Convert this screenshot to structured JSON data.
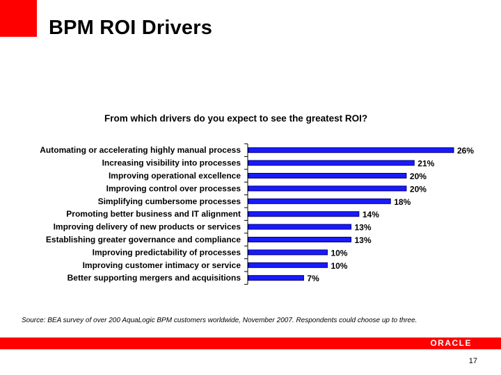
{
  "slide": {
    "title": "BPM ROI Drivers",
    "source": "Source: BEA survey of over 200 AquaLogic BPM customers worldwide, November 2007. Respondents could choose up to three.",
    "logo_text": "ORACLE",
    "page_number": "17"
  },
  "colors": {
    "accent_red": "#ff0000",
    "bar_fill": "#1a1aff",
    "bar_stroke": "#00007a"
  },
  "chart_data": {
    "type": "bar",
    "orientation": "horizontal",
    "title": "From which drivers do you expect to see the greatest ROI?",
    "categories": [
      "Automating or accelerating highly manual process",
      "Increasing visibility into processes",
      "Improving operational excellence",
      "Improving control over processes",
      "Simplifying cumbersome processes",
      "Promoting better business and IT alignment",
      "Improving delivery of new products or services",
      "Establishing greater governance and compliance",
      "Improving predictability of processes",
      "Improving customer intimacy or service",
      "Better supporting mergers and acquisitions"
    ],
    "values": [
      26,
      21,
      20,
      20,
      18,
      14,
      13,
      13,
      10,
      10,
      7
    ],
    "value_labels": [
      "26%",
      "21%",
      "20%",
      "20%",
      "18%",
      "14%",
      "13%",
      "13%",
      "10%",
      "10%",
      "7%"
    ],
    "xlim": [
      0,
      26
    ],
    "xlabel": "",
    "ylabel": "",
    "grid": false,
    "legend": "none"
  }
}
